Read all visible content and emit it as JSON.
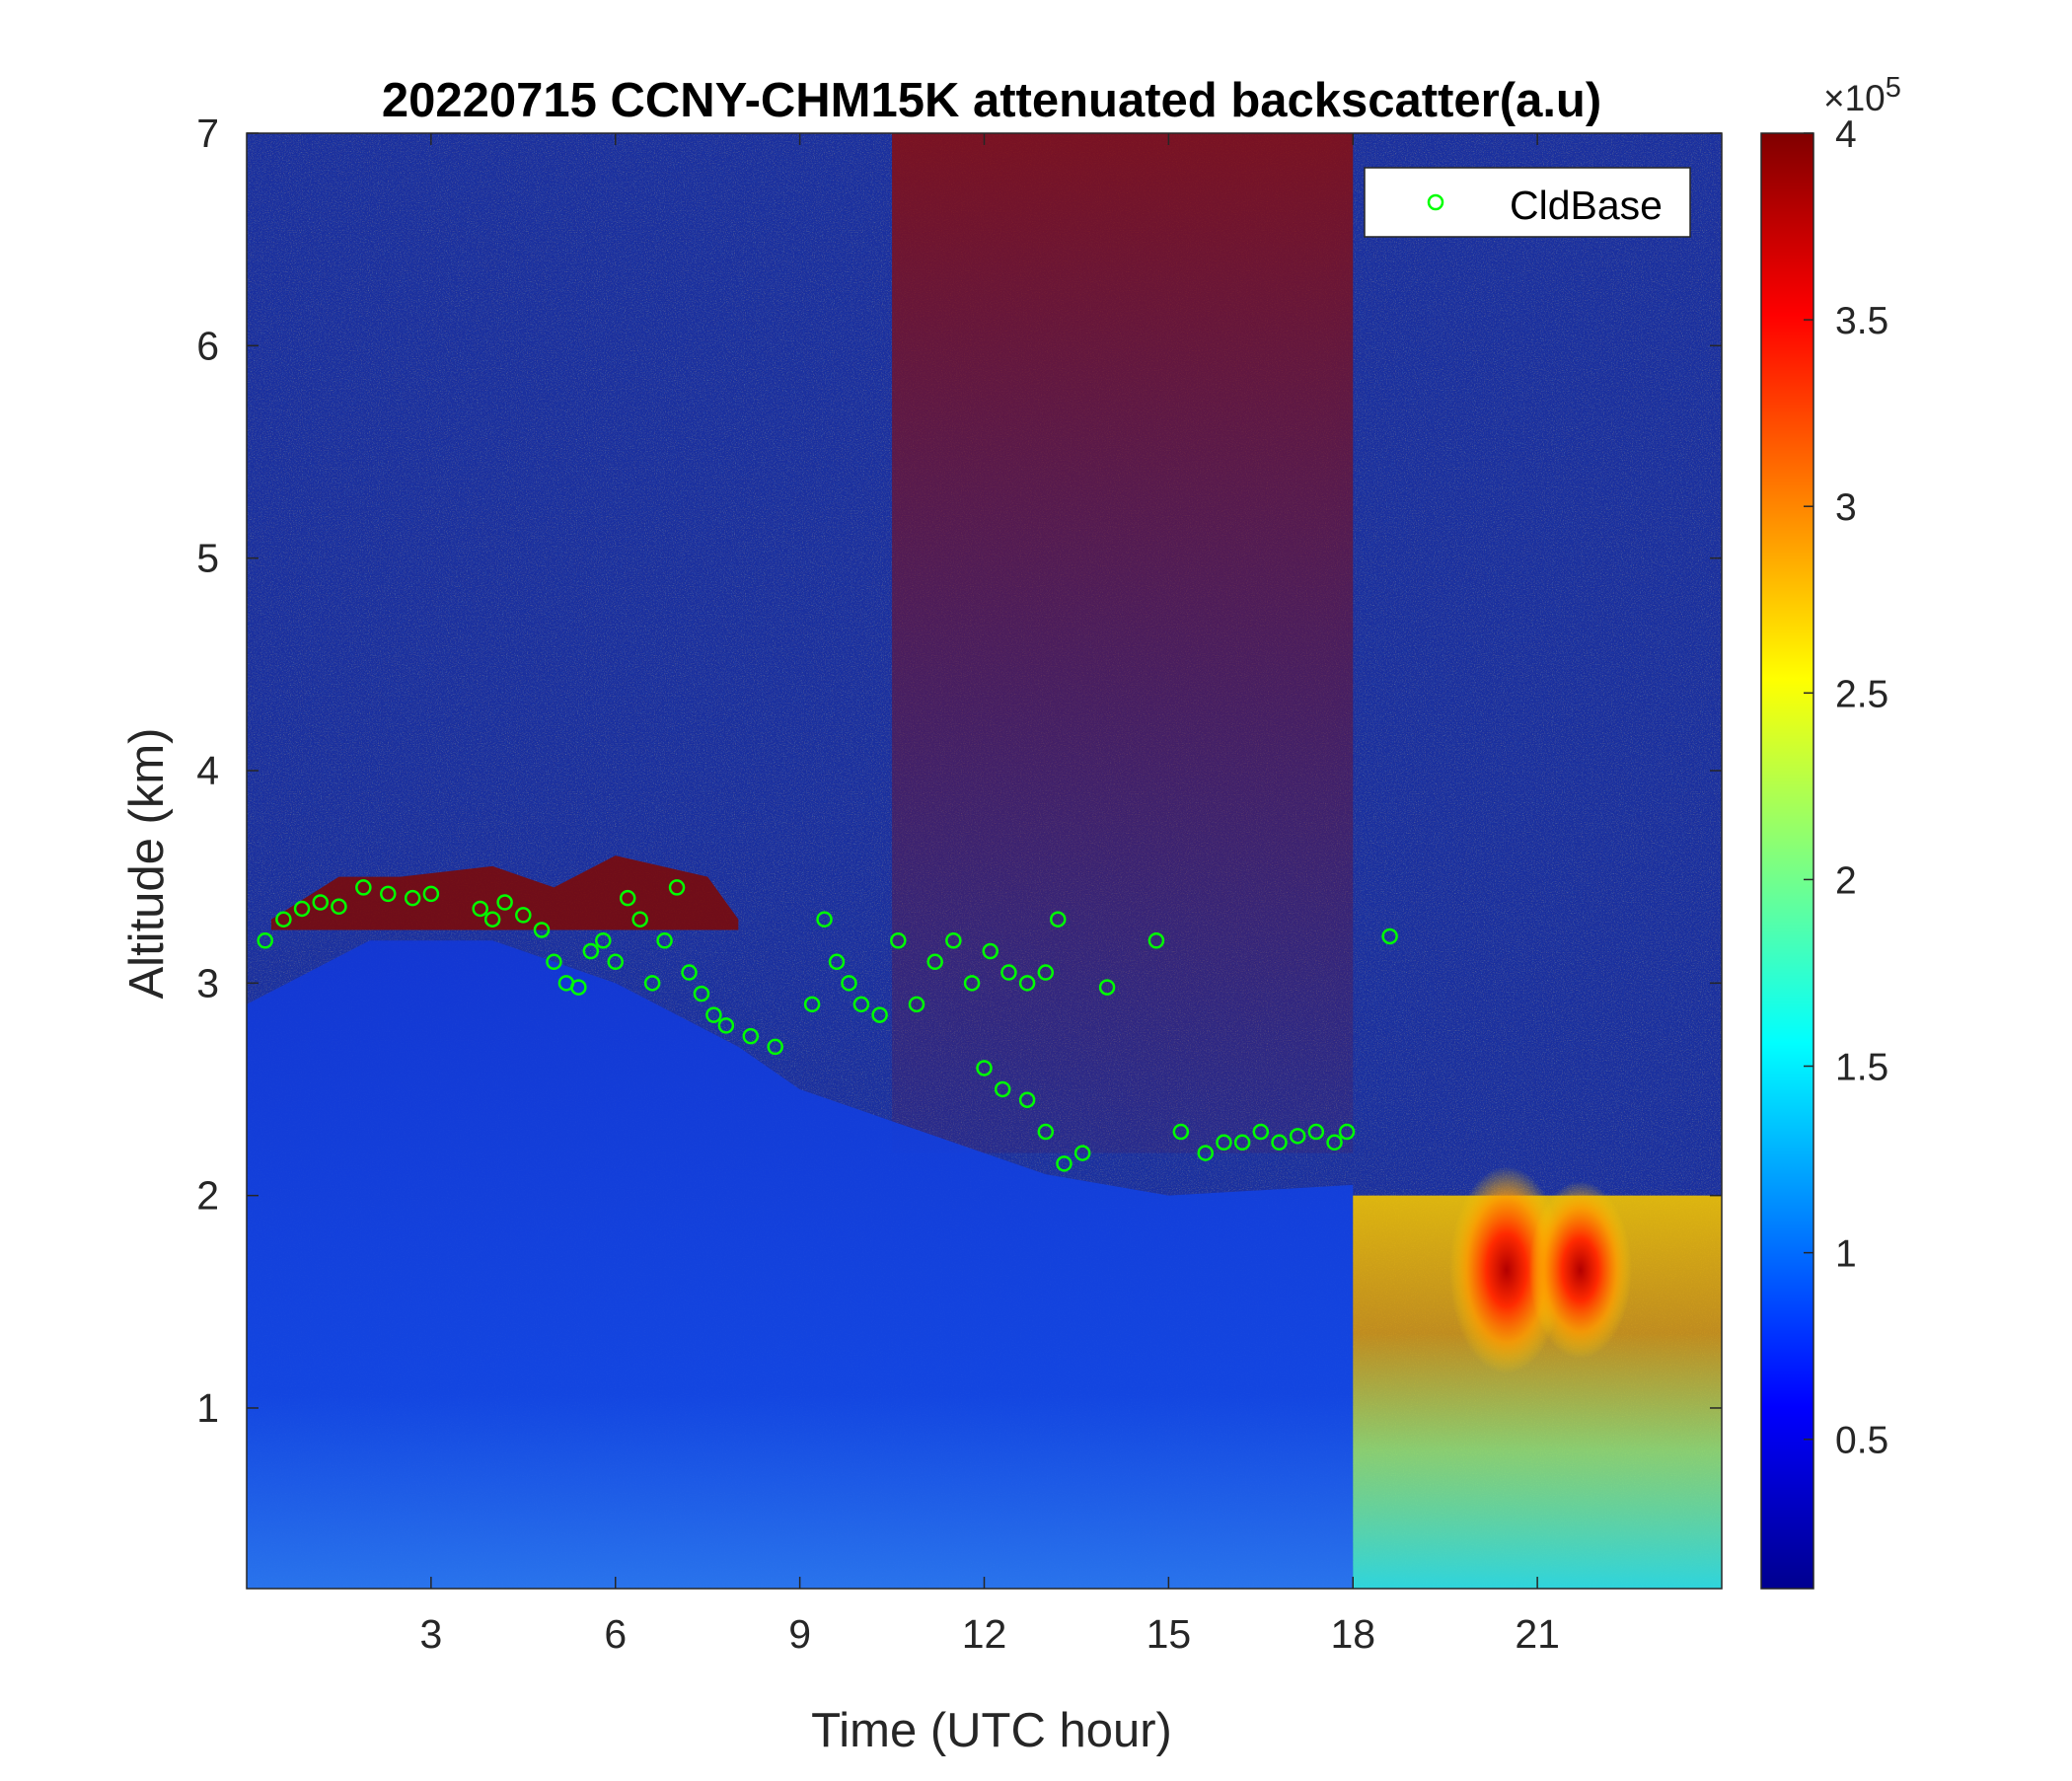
{
  "chart_data": {
    "type": "heatmap",
    "title": "20220715 CCNY-CHM15K attenuated backscatter(a.u)",
    "xlabel": "Time (UTC hour)",
    "ylabel": "Altitude (km)",
    "xlim": [
      0,
      24
    ],
    "ylim": [
      0.15,
      7
    ],
    "xticks": [
      3,
      6,
      9,
      12,
      15,
      18,
      21
    ],
    "yticks": [
      1,
      2,
      3,
      4,
      5,
      6,
      7
    ],
    "colorbar": {
      "colormap": "jet",
      "clim": [
        0.1,
        4
      ],
      "ticks": [
        0.5,
        1,
        1.5,
        2,
        2.5,
        3,
        3.5,
        4
      ],
      "multiplier": "×10",
      "exponent": "5"
    },
    "legend": {
      "location": "top-right",
      "entries": [
        "CldBase"
      ]
    },
    "series": [
      {
        "name": "CldBase",
        "marker": "circle",
        "color": "#00ff00",
        "x": [
          0.3,
          0.6,
          0.9,
          1.2,
          1.5,
          1.9,
          2.3,
          2.7,
          3.0,
          3.8,
          4.0,
          4.2,
          4.5,
          4.8,
          5.0,
          5.2,
          5.4,
          5.6,
          5.8,
          6.0,
          6.2,
          6.4,
          6.6,
          6.8,
          7.0,
          7.2,
          7.4,
          7.6,
          7.8,
          8.2,
          8.6,
          9.2,
          9.4,
          9.6,
          9.8,
          10.0,
          10.3,
          10.6,
          10.9,
          11.2,
          11.5,
          11.8,
          12.1,
          12.4,
          12.7,
          13.0,
          13.2,
          12.0,
          12.3,
          12.7,
          13.0,
          13.3,
          13.6,
          14.0,
          14.8,
          15.2,
          15.6,
          15.9,
          16.2,
          16.5,
          16.8,
          17.1,
          17.4,
          17.7,
          17.9,
          18.6
        ],
        "y": [
          3.2,
          3.3,
          3.35,
          3.38,
          3.36,
          3.45,
          3.42,
          3.4,
          3.42,
          3.35,
          3.3,
          3.38,
          3.32,
          3.25,
          3.1,
          3.0,
          2.98,
          3.15,
          3.2,
          3.1,
          3.4,
          3.3,
          3.0,
          3.2,
          3.45,
          3.05,
          2.95,
          2.85,
          2.8,
          2.75,
          2.7,
          2.9,
          3.3,
          3.1,
          3.0,
          2.9,
          2.85,
          3.2,
          2.9,
          3.1,
          3.2,
          3.0,
          3.15,
          3.05,
          3.0,
          3.05,
          3.3,
          2.6,
          2.5,
          2.45,
          2.3,
          2.15,
          2.2,
          2.98,
          3.2,
          2.3,
          2.2,
          2.25,
          2.25,
          2.3,
          2.25,
          2.28,
          2.3,
          2.25,
          2.3,
          3.22
        ]
      }
    ]
  }
}
